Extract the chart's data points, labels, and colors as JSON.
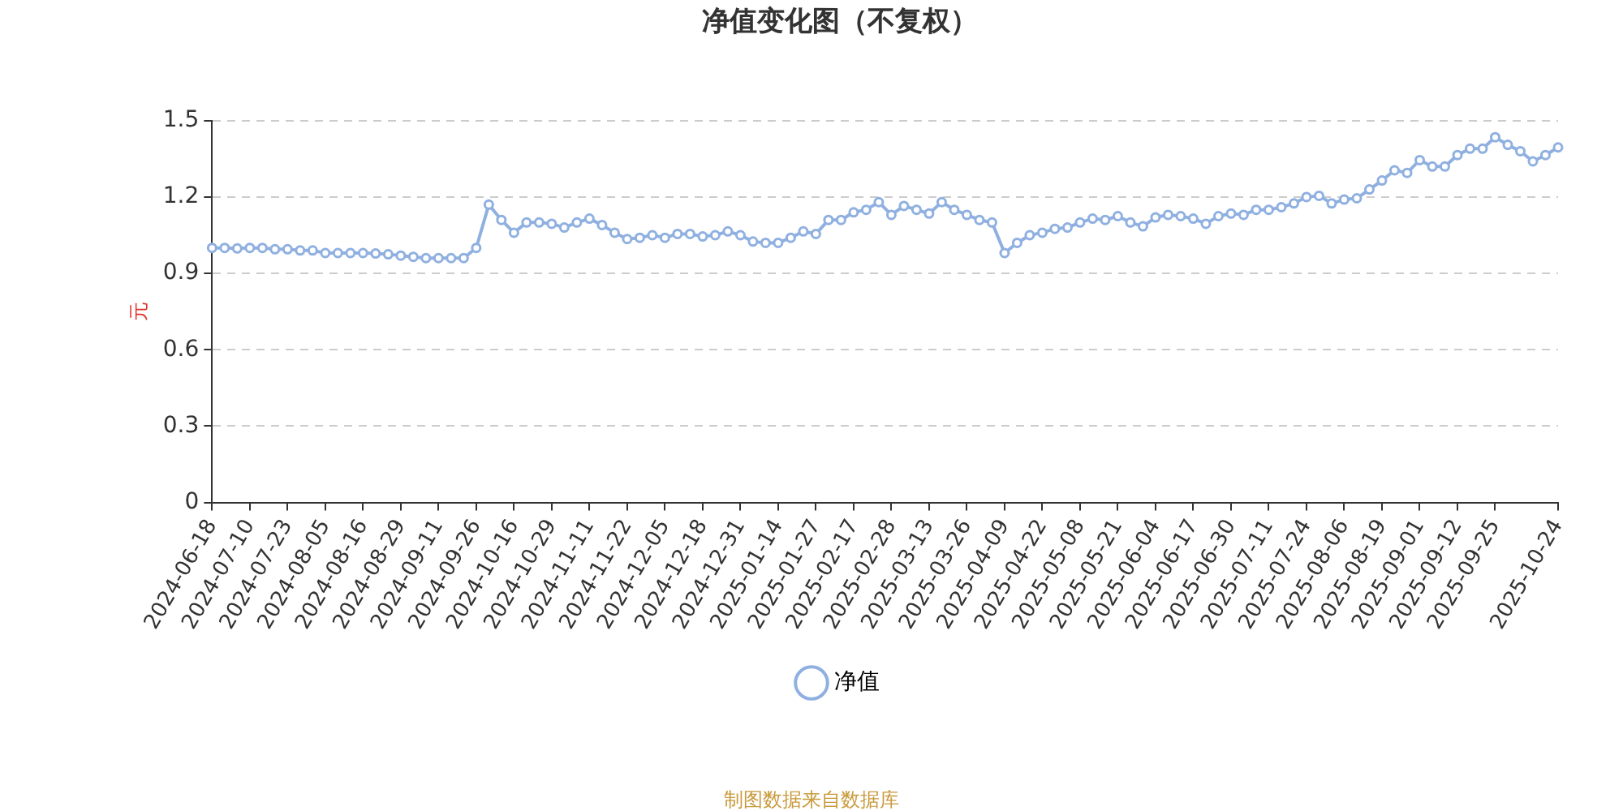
{
  "chart_data": {
    "type": "line",
    "title": "净值变化图（不复权）",
    "ylabel": "元",
    "categories": [
      "2024-06-18",
      null,
      null,
      "2024-07-10",
      null,
      null,
      "2024-07-23",
      null,
      null,
      "2024-08-05",
      null,
      null,
      "2024-08-16",
      null,
      null,
      "2024-08-29",
      null,
      null,
      "2024-09-11",
      null,
      null,
      "2024-09-26",
      null,
      null,
      "2024-10-16",
      null,
      null,
      "2024-10-29",
      null,
      null,
      "2024-11-11",
      null,
      null,
      "2024-11-22",
      null,
      null,
      "2024-12-05",
      null,
      null,
      "2024-12-18",
      null,
      null,
      "2024-12-31",
      null,
      null,
      "2025-01-14",
      null,
      null,
      "2025-01-27",
      null,
      null,
      "2025-02-17",
      null,
      null,
      "2025-02-28",
      null,
      null,
      "2025-03-13",
      null,
      null,
      "2025-03-26",
      null,
      null,
      "2025-04-09",
      null,
      null,
      "2025-04-22",
      null,
      null,
      "2025-05-08",
      null,
      null,
      "2025-05-21",
      null,
      null,
      "2025-06-04",
      null,
      null,
      "2025-06-17",
      null,
      null,
      "2025-06-30",
      null,
      null,
      "2025-07-11",
      null,
      null,
      "2025-07-24",
      null,
      null,
      "2025-08-06",
      null,
      null,
      "2025-08-19",
      null,
      null,
      "2025-09-01",
      null,
      null,
      "2025-09-12",
      null,
      null,
      "2025-09-25",
      null,
      null,
      null,
      null,
      "2025-10-24"
    ],
    "series": [
      {
        "name": "净值",
        "color": "#8fb0e0",
        "values": [
          1.0,
          1.0,
          0.998,
          1.0,
          1.0,
          0.995,
          0.995,
          0.99,
          0.99,
          0.98,
          0.98,
          0.98,
          0.98,
          0.978,
          0.975,
          0.97,
          0.965,
          0.96,
          0.96,
          0.96,
          0.96,
          1.0,
          1.17,
          1.11,
          1.06,
          1.1,
          1.1,
          1.095,
          1.08,
          1.1,
          1.115,
          1.09,
          1.06,
          1.035,
          1.04,
          1.05,
          1.04,
          1.055,
          1.055,
          1.045,
          1.05,
          1.065,
          1.05,
          1.025,
          1.02,
          1.02,
          1.04,
          1.065,
          1.055,
          1.11,
          1.11,
          1.14,
          1.15,
          1.18,
          1.13,
          1.165,
          1.15,
          1.135,
          1.18,
          1.15,
          1.13,
          1.11,
          1.1,
          0.98,
          1.02,
          1.05,
          1.06,
          1.075,
          1.08,
          1.1,
          1.115,
          1.11,
          1.125,
          1.1,
          1.085,
          1.12,
          1.13,
          1.125,
          1.115,
          1.095,
          1.125,
          1.135,
          1.13,
          1.15,
          1.15,
          1.16,
          1.175,
          1.2,
          1.205,
          1.175,
          1.19,
          1.195,
          1.23,
          1.265,
          1.305,
          1.295,
          1.345,
          1.32,
          1.32,
          1.365,
          1.39,
          1.39,
          1.435,
          1.405,
          1.38,
          1.34,
          1.365,
          1.395
        ]
      }
    ],
    "ylim": [
      0,
      1.5
    ],
    "yticks": [
      0,
      0.3,
      0.6,
      0.9,
      1.2,
      1.5
    ],
    "grid": "y",
    "legend": "bottom",
    "marker": "circle",
    "line_style": "solid",
    "annotations": [
      "制图数据来自数据库"
    ]
  }
}
